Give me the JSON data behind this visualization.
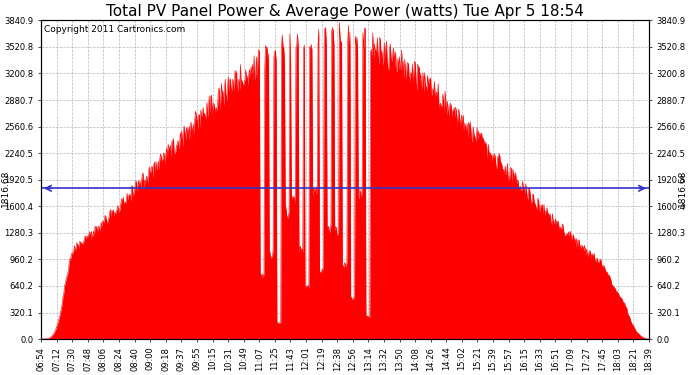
{
  "title": "Total PV Panel Power & Average Power (watts) Tue Apr 5 18:54",
  "copyright": "Copyright 2011 Cartronics.com",
  "average_power": 1816.68,
  "y_max": 3840.9,
  "y_min": 0.0,
  "y_ticks": [
    0.0,
    320.1,
    640.2,
    960.2,
    1280.3,
    1600.4,
    1920.5,
    2240.5,
    2560.6,
    2880.7,
    3200.8,
    3520.8,
    3840.9
  ],
  "x_labels": [
    "06:54",
    "07:12",
    "07:30",
    "07:48",
    "08:06",
    "08:24",
    "08:40",
    "09:00",
    "09:18",
    "09:37",
    "09:55",
    "10:15",
    "10:31",
    "10:49",
    "11:07",
    "11:25",
    "11:43",
    "12:01",
    "12:19",
    "12:38",
    "12:56",
    "13:14",
    "13:32",
    "13:50",
    "14:08",
    "14:26",
    "14:44",
    "15:02",
    "15:21",
    "15:39",
    "15:57",
    "16:15",
    "16:33",
    "16:51",
    "17:09",
    "17:27",
    "17:45",
    "18:03",
    "18:21",
    "18:39"
  ],
  "fill_color": "#FF0000",
  "line_color": "#FF0000",
  "avg_line_color": "#3333CC",
  "bg_color": "#FFFFFF",
  "plot_bg_color": "#FFFFFF",
  "grid_color": "#999999",
  "title_fontsize": 11,
  "copyright_fontsize": 6.5,
  "tick_fontsize": 6,
  "avg_label_fontsize": 6.5
}
